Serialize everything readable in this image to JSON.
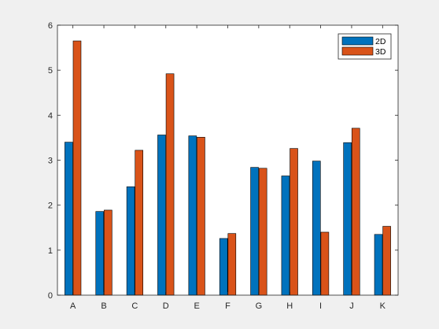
{
  "chart_data": {
    "type": "bar",
    "title": "",
    "xlabel": "",
    "ylabel": "",
    "categories": [
      "A",
      "B",
      "C",
      "D",
      "E",
      "F",
      "G",
      "H",
      "I",
      "J",
      "K"
    ],
    "series": [
      {
        "name": "2D",
        "color": "#0072BD",
        "values": [
          3.4,
          1.86,
          2.41,
          3.56,
          3.54,
          1.26,
          2.84,
          2.65,
          2.98,
          3.39,
          1.35
        ]
      },
      {
        "name": "3D",
        "color": "#D95319",
        "values": [
          5.65,
          1.89,
          3.22,
          4.92,
          3.51,
          1.37,
          2.82,
          3.26,
          1.4,
          3.71,
          1.53
        ]
      }
    ],
    "ylim": [
      0,
      6
    ],
    "yticks": [
      0,
      1,
      2,
      3,
      4,
      5,
      6
    ],
    "grid": false,
    "legend": "top-right",
    "background": "#ffffff",
    "figure_background": "#f0f0f0"
  }
}
